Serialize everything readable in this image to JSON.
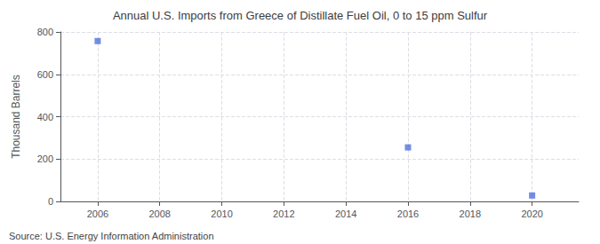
{
  "chart_data": {
    "type": "scatter",
    "title": "Annual U.S. Imports from Greece of Distillate Fuel Oil, 0 to 15 ppm Sulfur",
    "y_label": "Thousand Barrels",
    "annotation": "Source: U.S. Energy Information Administration",
    "x": [
      2006,
      2016,
      2020
    ],
    "values": [
      757,
      255,
      28
    ],
    "marker": "square",
    "xlim": [
      2004.8,
      2021.5
    ],
    "xticks": [
      2006,
      2008,
      2010,
      2012,
      2014,
      2016,
      2018,
      2020
    ],
    "ylim": [
      0,
      800
    ],
    "yticks": [
      0,
      200,
      400,
      600,
      800
    ],
    "grid": true
  }
}
